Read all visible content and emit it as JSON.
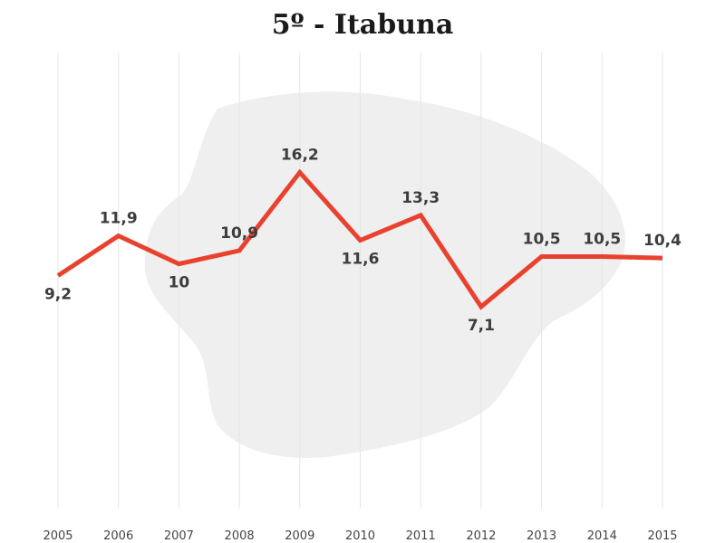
{
  "title": "5º - Itabuna",
  "colors": {
    "line": "#e8422f",
    "grid": "#e6e6e6",
    "map": "#efefef"
  },
  "chart_data": {
    "type": "line",
    "title": "5º - Itabuna",
    "x": [
      "2005",
      "2006",
      "2007",
      "2008",
      "2009",
      "2010",
      "2011",
      "2012",
      "2013",
      "2014",
      "2015"
    ],
    "series": [
      {
        "values": [
          9.2,
          11.9,
          10,
          10.9,
          16.2,
          11.6,
          13.3,
          7.1,
          10.5,
          10.5,
          10.4
        ]
      }
    ],
    "labels": [
      "9,2",
      "11,9",
      "10",
      "10,9",
      "16,2",
      "11,6",
      "13,3",
      "7,1",
      "10,5",
      "10,5",
      "10,4"
    ],
    "xlabel": "",
    "ylabel": "",
    "grid": "vertical",
    "legend": "none",
    "background": "faded map silhouette"
  }
}
